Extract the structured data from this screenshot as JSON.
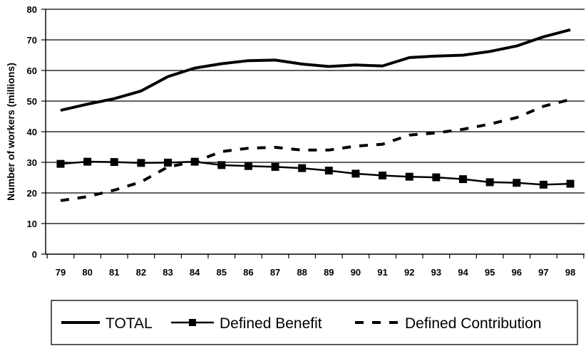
{
  "chart_data": {
    "type": "line",
    "title": "",
    "xlabel": "",
    "ylabel": "Number of workers (millions)",
    "categories": [
      "79",
      "80",
      "81",
      "82",
      "83",
      "84",
      "85",
      "86",
      "87",
      "88",
      "89",
      "90",
      "91",
      "92",
      "93",
      "94",
      "95",
      "96",
      "97",
      "98"
    ],
    "ylim": [
      0,
      80
    ],
    "yticks": [
      0,
      10,
      20,
      30,
      40,
      50,
      60,
      70,
      80
    ],
    "grid": "horizontal",
    "legend_position": "bottom",
    "series": [
      {
        "name": "TOTAL",
        "style": "solid",
        "marker": "none",
        "color": "#000000",
        "values": [
          47,
          49,
          50.8,
          53.3,
          58,
          60.8,
          62.2,
          63.2,
          63.4,
          62.1,
          61.3,
          61.8,
          61.5,
          64.2,
          64.7,
          65,
          66.2,
          68,
          71,
          73.3
        ]
      },
      {
        "name": "Defined Benefit",
        "style": "solid",
        "marker": "square",
        "color": "#000000",
        "values": [
          29.5,
          30.2,
          30.1,
          29.8,
          29.9,
          30.2,
          29.1,
          28.8,
          28.5,
          28.1,
          27.3,
          26.3,
          25.7,
          25.3,
          25.1,
          24.5,
          23.5,
          23.3,
          22.7,
          23
        ]
      },
      {
        "name": "Defined Contribution",
        "style": "dashed",
        "marker": "none",
        "color": "#000000",
        "values": [
          17.5,
          18.8,
          20.9,
          23.6,
          28.5,
          30.2,
          33.5,
          34.6,
          34.9,
          34,
          34,
          35.3,
          35.9,
          38.9,
          39.6,
          40.8,
          42.5,
          44.6,
          48.3,
          50.5
        ]
      }
    ]
  }
}
